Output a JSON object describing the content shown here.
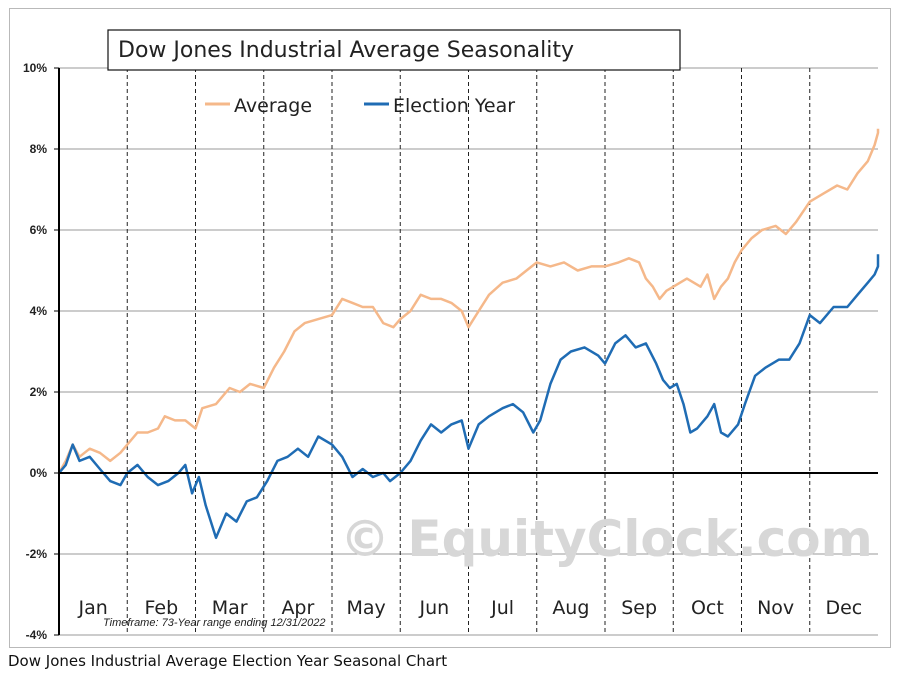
{
  "caption": "Dow Jones Industrial Average Election Year Seasonal Chart",
  "watermark": "© EquityClock.com",
  "chart_data": {
    "type": "line",
    "title": "Dow Jones Industrial Average Seasonality",
    "note": "Timeframe: 73-Year range ending 12/31/2022",
    "x_unit": "month index (0 = Jan 1, 12 = Dec 31)",
    "categories": [
      "Jan",
      "Feb",
      "Mar",
      "Apr",
      "May",
      "Jun",
      "Jul",
      "Aug",
      "Sep",
      "Oct",
      "Nov",
      "Dec"
    ],
    "ylim": [
      -4,
      10
    ],
    "yticks": [
      "-4%",
      "-2%",
      "0%",
      "2%",
      "4%",
      "6%",
      "8%",
      "10%"
    ],
    "ytick_values": [
      -4,
      -2,
      0,
      2,
      4,
      6,
      8,
      10
    ],
    "grid": "horizontal solid, monthly dashed verticals",
    "legend_position": "top-left",
    "series": [
      {
        "name": "Average",
        "color": "#f5b88a",
        "points": [
          [
            0,
            0
          ],
          [
            0.1,
            0.3
          ],
          [
            0.2,
            0.7
          ],
          [
            0.3,
            0.4
          ],
          [
            0.45,
            0.6
          ],
          [
            0.6,
            0.5
          ],
          [
            0.75,
            0.3
          ],
          [
            0.9,
            0.5
          ],
          [
            1.0,
            0.7
          ],
          [
            1.15,
            1.0
          ],
          [
            1.3,
            1.0
          ],
          [
            1.45,
            1.1
          ],
          [
            1.55,
            1.4
          ],
          [
            1.7,
            1.3
          ],
          [
            1.85,
            1.3
          ],
          [
            2.0,
            1.1
          ],
          [
            2.1,
            1.6
          ],
          [
            2.3,
            1.7
          ],
          [
            2.5,
            2.1
          ],
          [
            2.65,
            2.0
          ],
          [
            2.8,
            2.2
          ],
          [
            3.0,
            2.1
          ],
          [
            3.15,
            2.6
          ],
          [
            3.3,
            3.0
          ],
          [
            3.45,
            3.5
          ],
          [
            3.6,
            3.7
          ],
          [
            3.8,
            3.8
          ],
          [
            4.0,
            3.9
          ],
          [
            4.15,
            4.3
          ],
          [
            4.3,
            4.2
          ],
          [
            4.45,
            4.1
          ],
          [
            4.6,
            4.1
          ],
          [
            4.75,
            3.7
          ],
          [
            4.9,
            3.6
          ],
          [
            5.0,
            3.8
          ],
          [
            5.15,
            4.0
          ],
          [
            5.3,
            4.4
          ],
          [
            5.45,
            4.3
          ],
          [
            5.6,
            4.3
          ],
          [
            5.75,
            4.2
          ],
          [
            5.9,
            4.0
          ],
          [
            6.0,
            3.6
          ],
          [
            6.15,
            4.0
          ],
          [
            6.3,
            4.4
          ],
          [
            6.5,
            4.7
          ],
          [
            6.7,
            4.8
          ],
          [
            6.85,
            5.0
          ],
          [
            7.0,
            5.2
          ],
          [
            7.2,
            5.1
          ],
          [
            7.4,
            5.2
          ],
          [
            7.6,
            5.0
          ],
          [
            7.8,
            5.1
          ],
          [
            8.0,
            5.1
          ],
          [
            8.2,
            5.2
          ],
          [
            8.35,
            5.3
          ],
          [
            8.5,
            5.2
          ],
          [
            8.6,
            4.8
          ],
          [
            8.7,
            4.6
          ],
          [
            8.8,
            4.3
          ],
          [
            8.9,
            4.5
          ],
          [
            9.0,
            4.6
          ],
          [
            9.2,
            4.8
          ],
          [
            9.4,
            4.6
          ],
          [
            9.5,
            4.9
          ],
          [
            9.6,
            4.3
          ],
          [
            9.7,
            4.6
          ],
          [
            9.8,
            4.8
          ],
          [
            9.9,
            5.2
          ],
          [
            10.0,
            5.5
          ],
          [
            10.15,
            5.8
          ],
          [
            10.3,
            6.0
          ],
          [
            10.5,
            6.1
          ],
          [
            10.65,
            5.9
          ],
          [
            10.8,
            6.2
          ],
          [
            11.0,
            6.7
          ],
          [
            11.2,
            6.9
          ],
          [
            11.4,
            7.1
          ],
          [
            11.55,
            7.0
          ],
          [
            11.7,
            7.4
          ],
          [
            11.85,
            7.7
          ],
          [
            11.95,
            8.1
          ],
          [
            12.05,
            8.4
          ],
          [
            12.15,
            8.5
          ]
        ]
      },
      {
        "name": "Election Year",
        "color": "#1f6cb4",
        "points": [
          [
            0,
            0
          ],
          [
            0.1,
            0.2
          ],
          [
            0.2,
            0.7
          ],
          [
            0.3,
            0.3
          ],
          [
            0.45,
            0.4
          ],
          [
            0.6,
            0.1
          ],
          [
            0.75,
            -0.2
          ],
          [
            0.9,
            -0.3
          ],
          [
            1.0,
            0.0
          ],
          [
            1.15,
            0.2
          ],
          [
            1.3,
            -0.1
          ],
          [
            1.45,
            -0.3
          ],
          [
            1.6,
            -0.2
          ],
          [
            1.75,
            0.0
          ],
          [
            1.85,
            0.2
          ],
          [
            1.95,
            -0.5
          ],
          [
            2.05,
            -0.1
          ],
          [
            2.15,
            -0.8
          ],
          [
            2.3,
            -1.6
          ],
          [
            2.45,
            -1.0
          ],
          [
            2.6,
            -1.2
          ],
          [
            2.75,
            -0.7
          ],
          [
            2.9,
            -0.6
          ],
          [
            3.05,
            -0.2
          ],
          [
            3.2,
            0.3
          ],
          [
            3.35,
            0.4
          ],
          [
            3.5,
            0.6
          ],
          [
            3.65,
            0.4
          ],
          [
            3.8,
            0.9
          ],
          [
            4.0,
            0.7
          ],
          [
            4.15,
            0.4
          ],
          [
            4.3,
            -0.1
          ],
          [
            4.45,
            0.1
          ],
          [
            4.6,
            -0.1
          ],
          [
            4.75,
            0.0
          ],
          [
            4.85,
            -0.2
          ],
          [
            5.0,
            0.0
          ],
          [
            5.15,
            0.3
          ],
          [
            5.3,
            0.8
          ],
          [
            5.45,
            1.2
          ],
          [
            5.6,
            1.0
          ],
          [
            5.75,
            1.2
          ],
          [
            5.9,
            1.3
          ],
          [
            6.0,
            0.6
          ],
          [
            6.15,
            1.2
          ],
          [
            6.3,
            1.4
          ],
          [
            6.5,
            1.6
          ],
          [
            6.65,
            1.7
          ],
          [
            6.8,
            1.5
          ],
          [
            6.95,
            1.0
          ],
          [
            7.05,
            1.3
          ],
          [
            7.2,
            2.2
          ],
          [
            7.35,
            2.8
          ],
          [
            7.5,
            3.0
          ],
          [
            7.7,
            3.1
          ],
          [
            7.9,
            2.9
          ],
          [
            8.0,
            2.7
          ],
          [
            8.15,
            3.2
          ],
          [
            8.3,
            3.4
          ],
          [
            8.45,
            3.1
          ],
          [
            8.6,
            3.2
          ],
          [
            8.75,
            2.7
          ],
          [
            8.85,
            2.3
          ],
          [
            8.95,
            2.1
          ],
          [
            9.05,
            2.2
          ],
          [
            9.15,
            1.7
          ],
          [
            9.25,
            1.0
          ],
          [
            9.35,
            1.1
          ],
          [
            9.5,
            1.4
          ],
          [
            9.6,
            1.7
          ],
          [
            9.7,
            1.0
          ],
          [
            9.8,
            0.9
          ],
          [
            9.95,
            1.2
          ],
          [
            10.05,
            1.7
          ],
          [
            10.2,
            2.4
          ],
          [
            10.35,
            2.6
          ],
          [
            10.55,
            2.8
          ],
          [
            10.7,
            2.8
          ],
          [
            10.85,
            3.2
          ],
          [
            11.0,
            3.9
          ],
          [
            11.15,
            3.7
          ],
          [
            11.35,
            4.1
          ],
          [
            11.55,
            4.1
          ],
          [
            11.7,
            4.4
          ],
          [
            11.85,
            4.7
          ],
          [
            11.95,
            4.9
          ],
          [
            12.05,
            5.1
          ],
          [
            12.15,
            5.4
          ]
        ]
      }
    ]
  }
}
